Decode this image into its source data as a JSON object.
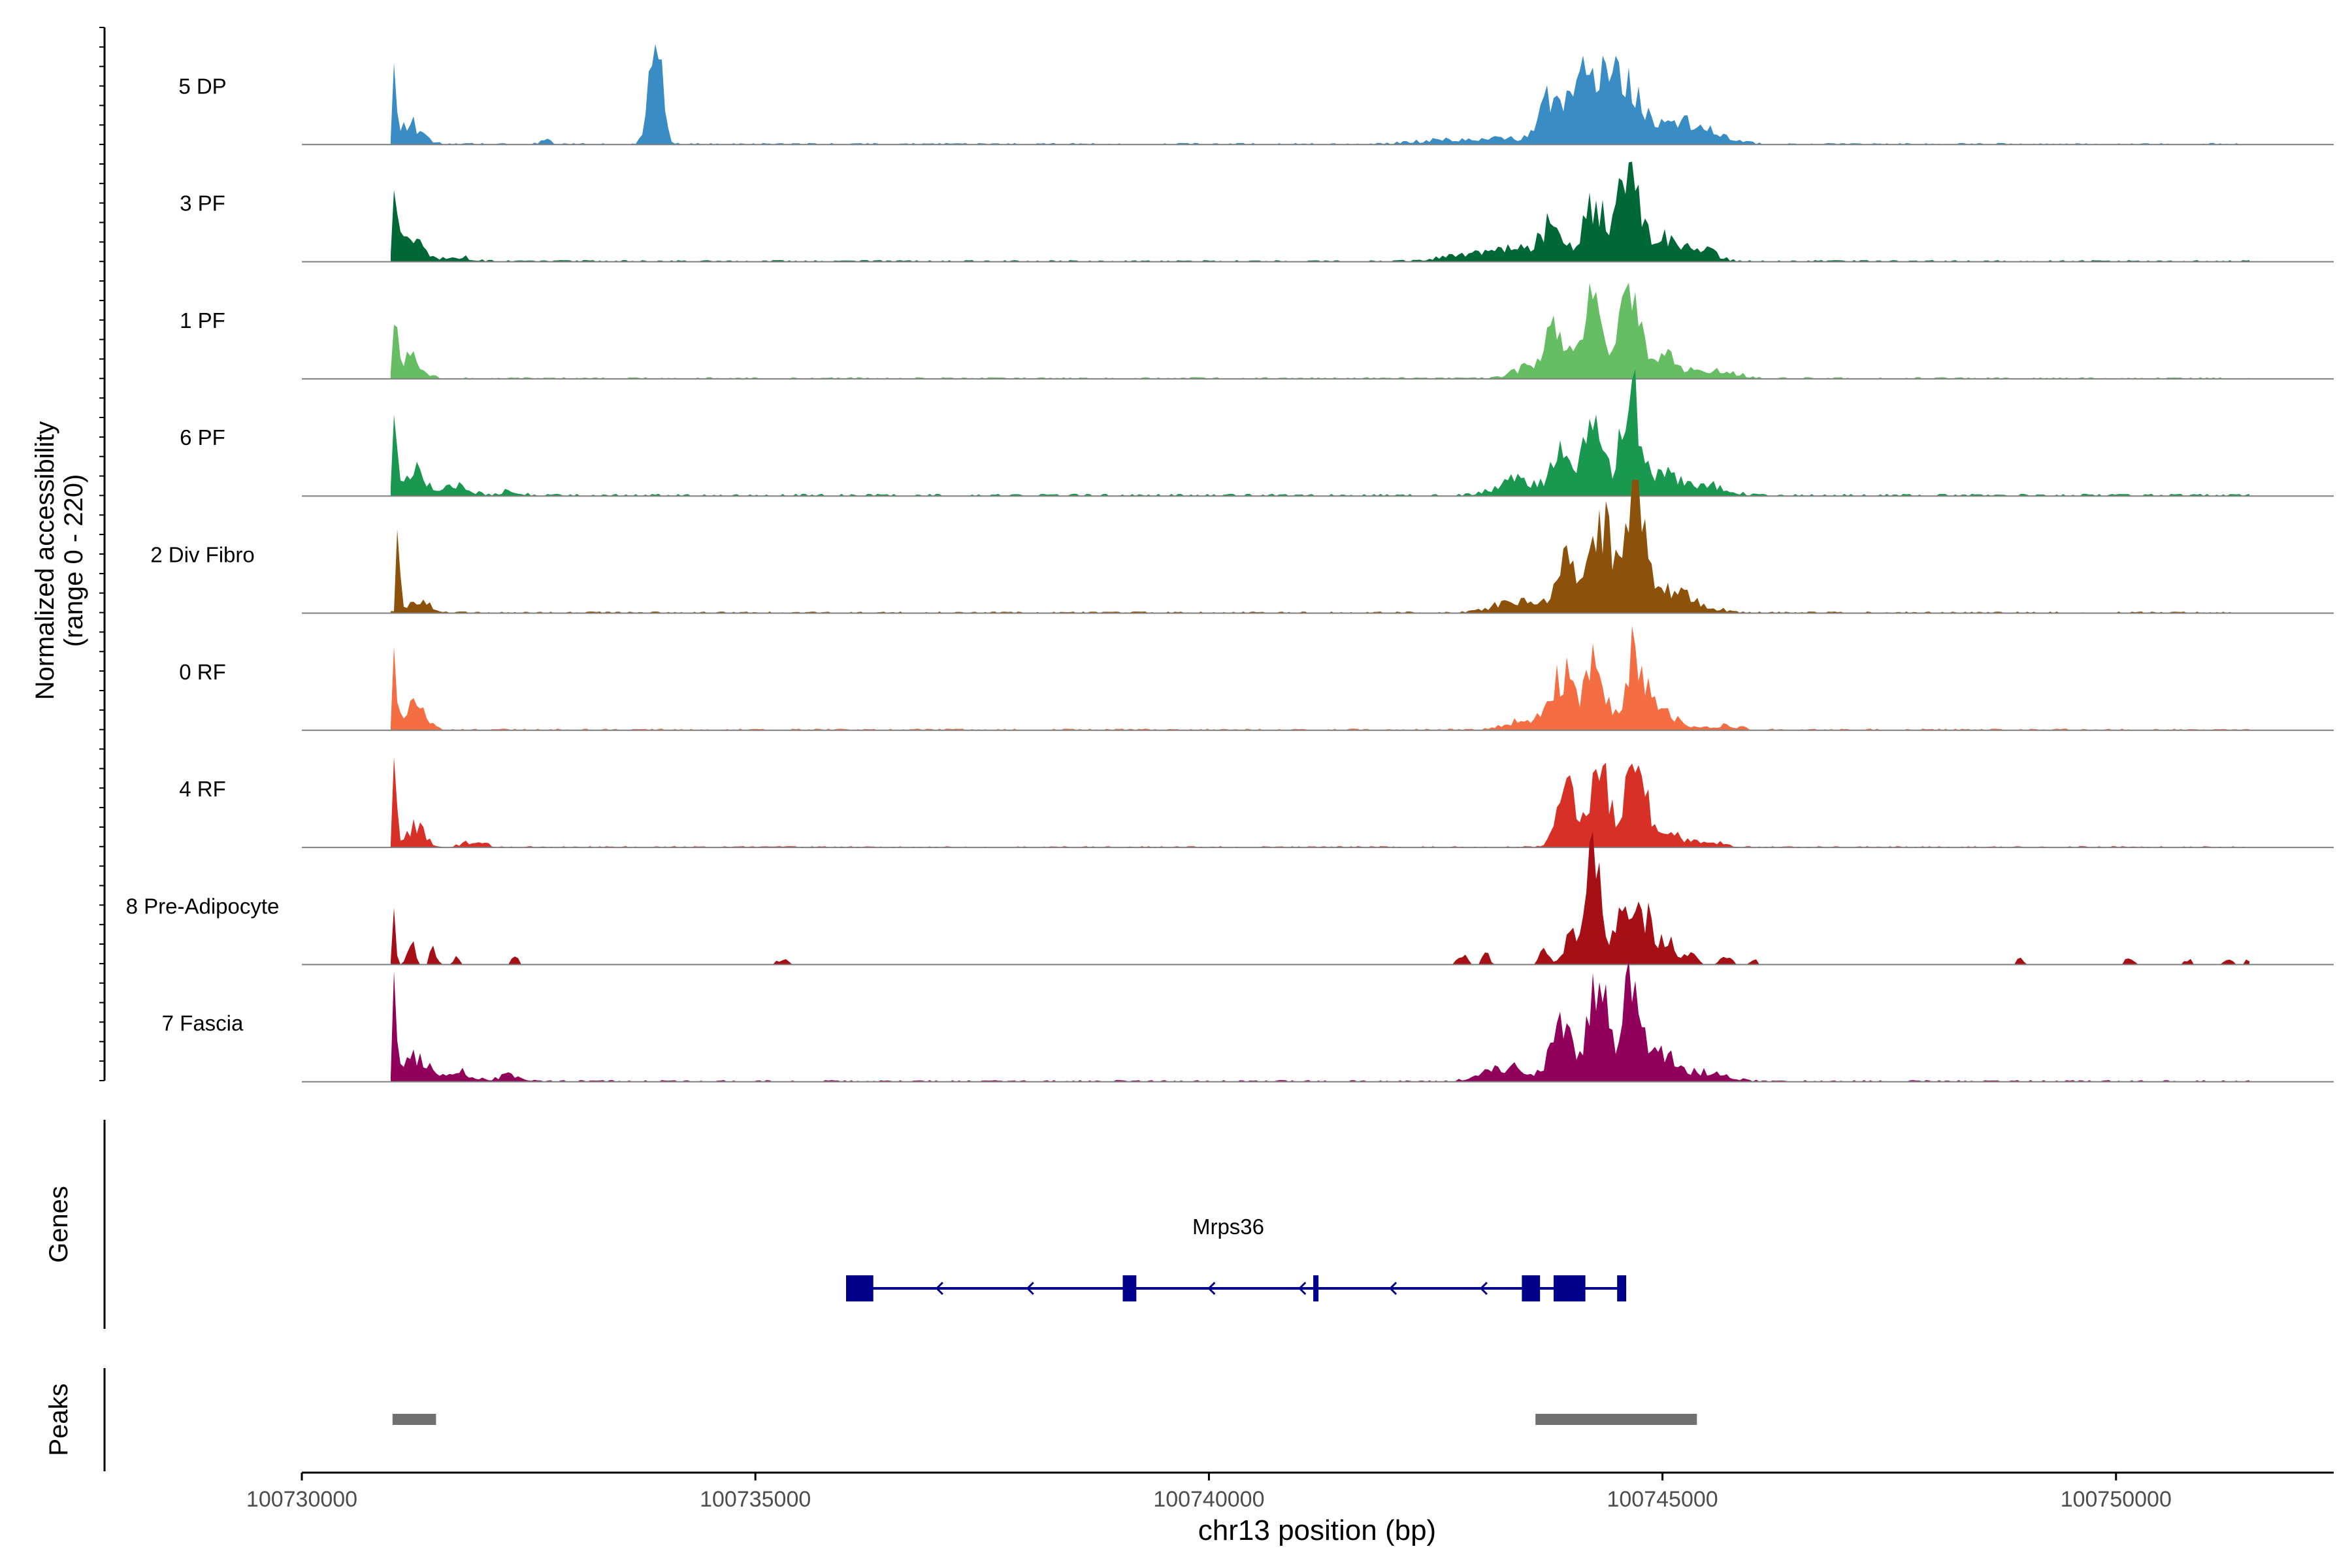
{
  "chart_data": {
    "type": "area",
    "title": "",
    "xlabel": "chr13 position (bp)",
    "ylabel_line1": "Normalized accessibility",
    "ylabel_line2": "(range 0 - 220)",
    "xlim": [
      100730000,
      100752400
    ],
    "ylim": [
      0,
      220
    ],
    "x_ticks": [
      100730000,
      100735000,
      100740000,
      100745000,
      100750000
    ],
    "x_tick_labels": [
      "100730000",
      "100735000",
      "100740000",
      "100745000",
      "100750000"
    ],
    "series": [
      {
        "name": "5 DP",
        "color": "#3A8CC4",
        "baseline": 0.015,
        "peaks": [
          [
            100731000,
            0.95,
            35
          ],
          [
            100731200,
            0.18,
            120
          ],
          [
            100732700,
            0.03,
            60
          ],
          [
            100733900,
            0.95,
            70
          ],
          [
            100743800,
            0.45,
            130
          ],
          [
            100744200,
            0.68,
            140
          ],
          [
            100744550,
            0.6,
            140
          ],
          [
            100744900,
            0.18,
            180
          ],
          [
            100745300,
            0.15,
            170
          ],
          [
            100745600,
            0.06,
            200
          ],
          [
            100743200,
            0.05,
            300
          ],
          [
            100742500,
            0.03,
            300
          ]
        ]
      },
      {
        "name": "3 PF",
        "color": "#006837",
        "baseline": 0.015,
        "peaks": [
          [
            100731000,
            0.95,
            35
          ],
          [
            100731200,
            0.22,
            120
          ],
          [
            100731700,
            0.04,
            150
          ],
          [
            100743400,
            0.12,
            250
          ],
          [
            100743800,
            0.32,
            120
          ],
          [
            100744250,
            0.5,
            120
          ],
          [
            100744620,
            0.75,
            110
          ],
          [
            100745000,
            0.22,
            170
          ],
          [
            100745400,
            0.12,
            160
          ],
          [
            100742800,
            0.05,
            250
          ]
        ]
      },
      {
        "name": "1 PF",
        "color": "#66BD63",
        "baseline": 0.015,
        "peaks": [
          [
            100731000,
            0.78,
            35
          ],
          [
            100731200,
            0.2,
            120
          ],
          [
            100743600,
            0.12,
            200
          ],
          [
            100743850,
            0.42,
            110
          ],
          [
            100744250,
            0.68,
            110
          ],
          [
            100744650,
            0.88,
            100
          ],
          [
            100745000,
            0.2,
            180
          ],
          [
            100745600,
            0.08,
            200
          ]
        ]
      },
      {
        "name": "6 PF",
        "color": "#1A9850",
        "baseline": 0.02,
        "peaks": [
          [
            100731000,
            0.8,
            35
          ],
          [
            100731250,
            0.22,
            120
          ],
          [
            100731700,
            0.08,
            150
          ],
          [
            100732300,
            0.04,
            100
          ],
          [
            100743400,
            0.14,
            220
          ],
          [
            100743900,
            0.4,
            110
          ],
          [
            100744250,
            0.65,
            110
          ],
          [
            100744650,
            0.92,
            100
          ],
          [
            100745000,
            0.2,
            170
          ],
          [
            100745500,
            0.09,
            200
          ]
        ]
      },
      {
        "name": "2 Div Fibro",
        "color": "#8C510A",
        "baseline": 0.015,
        "peaks": [
          [
            100731050,
            0.52,
            35
          ],
          [
            100731300,
            0.1,
            120
          ],
          [
            100743400,
            0.1,
            250
          ],
          [
            100743950,
            0.42,
            130
          ],
          [
            100744350,
            0.75,
            120
          ],
          [
            100744700,
            1.15,
            110
          ],
          [
            100745100,
            0.18,
            150
          ],
          [
            100745400,
            0.06,
            200
          ]
        ]
      },
      {
        "name": "0 RF",
        "color": "#F46D43",
        "baseline": 0.015,
        "peaks": [
          [
            100731000,
            0.72,
            35
          ],
          [
            100731250,
            0.22,
            110
          ],
          [
            100743500,
            0.1,
            200
          ],
          [
            100743900,
            0.48,
            110
          ],
          [
            100744250,
            0.58,
            110
          ],
          [
            100744700,
            0.72,
            100
          ],
          [
            100745000,
            0.16,
            170
          ],
          [
            100745700,
            0.04,
            150
          ]
        ]
      },
      {
        "name": "4 RF",
        "color": "#D73027",
        "baseline": 0.012,
        "peaks": [
          [
            100731000,
            0.68,
            35
          ],
          [
            100731250,
            0.18,
            110
          ],
          [
            100731900,
            0.05,
            120
          ],
          [
            100743950,
            0.48,
            110
          ],
          [
            100744300,
            0.68,
            110
          ],
          [
            100744700,
            0.78,
            100
          ],
          [
            100745000,
            0.16,
            170
          ],
          [
            100745500,
            0.05,
            160
          ]
        ]
      },
      {
        "name": "8 Pre-Adipocyte",
        "color": "#A50F15",
        "baseline": 0.0,
        "peaks": [
          [
            100731000,
            0.95,
            25
          ],
          [
            100731200,
            0.22,
            40
          ],
          [
            100731450,
            0.16,
            35
          ],
          [
            100731700,
            0.08,
            30
          ],
          [
            100732350,
            0.06,
            40
          ],
          [
            100735300,
            0.05,
            60
          ],
          [
            100742800,
            0.1,
            50
          ],
          [
            100743050,
            0.1,
            40
          ],
          [
            100743700,
            0.12,
            60
          ],
          [
            100744000,
            0.25,
            80
          ],
          [
            100744250,
            1.02,
            80
          ],
          [
            100744550,
            0.4,
            100
          ],
          [
            100744800,
            0.45,
            90
          ],
          [
            100745050,
            0.22,
            80
          ],
          [
            100745300,
            0.12,
            80
          ],
          [
            100745700,
            0.08,
            60
          ],
          [
            100746000,
            0.05,
            40
          ],
          [
            100748950,
            0.06,
            40
          ],
          [
            100750150,
            0.05,
            60
          ],
          [
            100750800,
            0.05,
            40
          ],
          [
            100751250,
            0.05,
            50
          ],
          [
            100751450,
            0.04,
            40
          ]
        ]
      },
      {
        "name": "7 Fascia",
        "color": "#91005A",
        "baseline": 0.015,
        "peaks": [
          [
            100731000,
            0.82,
            35
          ],
          [
            100731250,
            0.22,
            130
          ],
          [
            100731700,
            0.09,
            150
          ],
          [
            100732300,
            0.06,
            120
          ],
          [
            100743300,
            0.12,
            250
          ],
          [
            100743900,
            0.58,
            120
          ],
          [
            100744300,
            0.82,
            110
          ],
          [
            100744650,
            0.82,
            100
          ],
          [
            100745000,
            0.22,
            170
          ],
          [
            100745500,
            0.08,
            200
          ]
        ]
      }
    ],
    "gene_track_label": "Genes",
    "gene": {
      "name": "Mrps36",
      "color": "#00008B",
      "strand": "-",
      "start": 100736000,
      "end": 100744600,
      "exons": [
        [
          100736000,
          100736300
        ],
        [
          100739050,
          100739200
        ],
        [
          100741150,
          100741200
        ],
        [
          100743450,
          100743650
        ],
        [
          100743800,
          100744150
        ],
        [
          100744500,
          100744600
        ]
      ],
      "arrows": [
        100737000,
        100738000,
        100740000,
        100741000,
        100742000,
        100743000
      ]
    },
    "peaks_track_label": "Peaks",
    "peaks_color": "#707070",
    "peak_regions": [
      [
        100731000,
        100731480
      ],
      [
        100743600,
        100745380
      ]
    ]
  }
}
